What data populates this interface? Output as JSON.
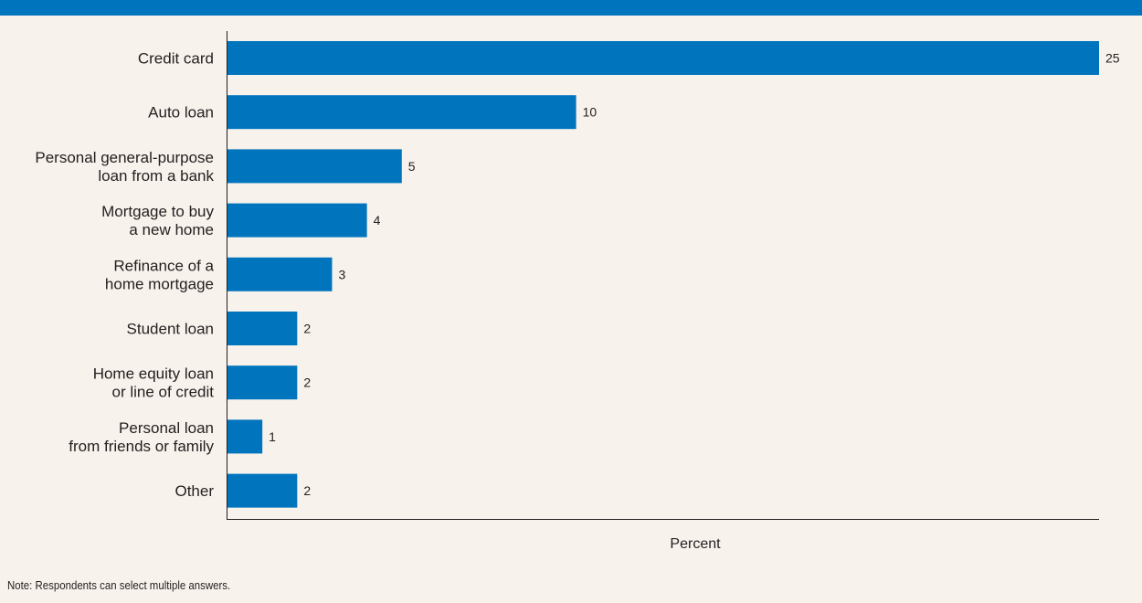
{
  "colors": {
    "bar": "#0075be",
    "header": "#0075be",
    "background": "#f8f2ec",
    "axis": "#231f20"
  },
  "chart_data": {
    "type": "bar",
    "orientation": "horizontal",
    "categories": [
      [
        "Credit card"
      ],
      [
        "Auto loan"
      ],
      [
        "Personal general-purpose",
        "loan from a bank"
      ],
      [
        "Mortgage to buy",
        "a new home"
      ],
      [
        "Refinance of a",
        "home mortgage"
      ],
      [
        "Student loan"
      ],
      [
        "Home equity loan",
        "or line of credit"
      ],
      [
        "Personal loan",
        "from friends or family"
      ],
      [
        "Other"
      ]
    ],
    "values": [
      25,
      10,
      5,
      4,
      3,
      2,
      2,
      1,
      2
    ],
    "value_labels": [
      "25",
      "10",
      "5",
      "4",
      "3",
      "2",
      "2",
      "1",
      "2"
    ],
    "xlabel": "Percent",
    "xlim": [
      0,
      25
    ],
    "grid": false
  },
  "note": "Note: Respondents can select multiple answers."
}
